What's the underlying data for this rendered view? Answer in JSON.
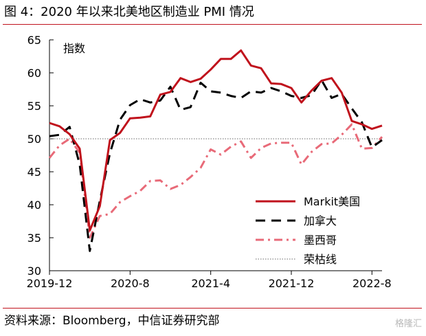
{
  "figure": {
    "title": "图 4：2020 年以来北美地区制造业 PMI 情况",
    "source": "资料来源：Bloomberg，中信证券研究部",
    "watermark": "格隆汇"
  },
  "colors": {
    "markit_us": "#c0121c",
    "canada": "#000000",
    "mexico": "#e86a78",
    "rong_ku": "#666666",
    "rule": "#c0121c"
  },
  "chart_data": {
    "type": "line",
    "ylabel": "指数",
    "ylim": [
      30,
      65
    ],
    "yticks": [
      30,
      35,
      40,
      45,
      50,
      55,
      60,
      65
    ],
    "xlim": [
      "2019-12",
      "2022-09"
    ],
    "xticks": [
      "2019-12",
      "2020-8",
      "2021-4",
      "2021-12",
      "2022-8"
    ],
    "grid": false,
    "legend_position": "right",
    "x": [
      "2019-12",
      "2020-01",
      "2020-02",
      "2020-03",
      "2020-04",
      "2020-05",
      "2020-06",
      "2020-07",
      "2020-08",
      "2020-09",
      "2020-10",
      "2020-11",
      "2020-12",
      "2021-01",
      "2021-02",
      "2021-03",
      "2021-04",
      "2021-05",
      "2021-06",
      "2021-07",
      "2021-08",
      "2021-09",
      "2021-10",
      "2021-11",
      "2021-12",
      "2022-01",
      "2022-02",
      "2022-03",
      "2022-04",
      "2022-05",
      "2022-06",
      "2022-07",
      "2022-08",
      "2022-09"
    ],
    "series": [
      {
        "name": "Markit美国",
        "style": "solid",
        "values": [
          52.4,
          51.9,
          50.7,
          48.5,
          36.1,
          39.8,
          49.8,
          50.9,
          53.1,
          53.2,
          53.4,
          56.7,
          57.1,
          59.2,
          58.6,
          59.1,
          60.5,
          62.1,
          62.1,
          63.4,
          61.1,
          60.7,
          58.4,
          58.3,
          57.7,
          55.5,
          57.3,
          58.8,
          59.2,
          57.0,
          52.7,
          52.2,
          51.5,
          52.0
        ]
      },
      {
        "name": "加拿大",
        "style": "dashed",
        "values": [
          50.4,
          50.6,
          51.8,
          46.1,
          33.0,
          40.6,
          47.8,
          52.9,
          55.1,
          56.0,
          55.5,
          55.8,
          57.9,
          54.4,
          54.8,
          58.5,
          57.2,
          57.0,
          56.5,
          56.2,
          57.2,
          57.0,
          57.7,
          57.2,
          56.5,
          56.2,
          56.6,
          58.9,
          56.2,
          56.8,
          54.6,
          52.5,
          48.7,
          49.8
        ]
      },
      {
        "name": "墨西哥",
        "style": "dashdot",
        "values": [
          47.1,
          49.0,
          50.0,
          47.9,
          35.0,
          38.3,
          38.6,
          40.4,
          41.3,
          42.1,
          43.6,
          43.7,
          42.4,
          43.0,
          44.2,
          45.6,
          48.4,
          47.6,
          48.8,
          49.6,
          47.1,
          48.6,
          49.3,
          49.4,
          49.4,
          46.1,
          48.0,
          49.2,
          49.3,
          50.6,
          52.2,
          48.5,
          48.6,
          50.3
        ]
      },
      {
        "name": "荣枯线",
        "style": "dotted",
        "values": [
          50,
          50,
          50,
          50,
          50,
          50,
          50,
          50,
          50,
          50,
          50,
          50,
          50,
          50,
          50,
          50,
          50,
          50,
          50,
          50,
          50,
          50,
          50,
          50,
          50,
          50,
          50,
          50,
          50,
          50,
          50,
          50,
          50,
          50
        ]
      }
    ]
  }
}
